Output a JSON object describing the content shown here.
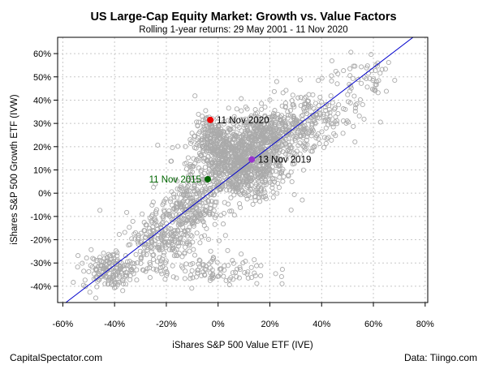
{
  "chart_data": {
    "type": "scatter",
    "title": "US Large-Cap Equity Market: Growth vs. Value Factors",
    "subtitle": "Rolling 1-year returns: 29 May 2001 - 11 Nov 2020",
    "xlabel": "iShares S&P 500 Value ETF (IVE)",
    "ylabel": "iShares S&P 500 Growth ETF (IVW)",
    "xlim": [
      -0.62,
      0.81
    ],
    "ylim": [
      -0.47,
      0.67
    ],
    "x_ticks": [
      -0.6,
      -0.4,
      -0.2,
      0.0,
      0.2,
      0.4,
      0.6,
      0.8
    ],
    "x_tick_labels": [
      "-60%",
      "-40%",
      "-20%",
      "0%",
      "20%",
      "40%",
      "60%",
      "80%"
    ],
    "y_ticks": [
      -0.4,
      -0.3,
      -0.2,
      -0.1,
      0.0,
      0.1,
      0.2,
      0.3,
      0.4,
      0.5,
      0.6
    ],
    "y_tick_labels": [
      "-40%",
      "-30%",
      "-20%",
      "-10%",
      "0%",
      "10%",
      "20%",
      "30%",
      "40%",
      "50%",
      "60%"
    ],
    "grid": true,
    "point_color": "#aaaaaa",
    "regression_line": {
      "color": "#0000cc",
      "intercept": 0.03,
      "slope": 0.85
    },
    "clusters": [
      {
        "cx": 0.08,
        "cy": 0.12,
        "sx": 0.09,
        "sy": 0.075,
        "n": 900
      },
      {
        "cx": 0.2,
        "cy": 0.25,
        "sx": 0.08,
        "sy": 0.05,
        "n": 380
      },
      {
        "cx": 0.36,
        "cy": 0.33,
        "sx": 0.09,
        "sy": 0.06,
        "n": 180
      },
      {
        "cx": -0.12,
        "cy": -0.07,
        "sx": 0.05,
        "sy": 0.06,
        "n": 240
      },
      {
        "cx": -0.22,
        "cy": -0.2,
        "sx": 0.07,
        "sy": 0.06,
        "n": 200
      },
      {
        "cx": -0.42,
        "cy": -0.33,
        "sx": 0.05,
        "sy": 0.04,
        "n": 170
      },
      {
        "cx": -0.03,
        "cy": 0.24,
        "sx": 0.03,
        "sy": 0.05,
        "n": 160
      },
      {
        "cx": 0.56,
        "cy": 0.5,
        "sx": 0.07,
        "sy": 0.05,
        "n": 50
      },
      {
        "cx": -0.04,
        "cy": -0.33,
        "sx": 0.12,
        "sy": 0.035,
        "n": 110
      }
    ],
    "highlights": [
      {
        "label": "11 Nov 2020",
        "x": -0.03,
        "y": 0.315,
        "color": "#ee0000",
        "label_side": "right"
      },
      {
        "label": "13 Nov 2019",
        "x": 0.13,
        "y": 0.145,
        "color": "#9933cc",
        "label_side": "right"
      },
      {
        "label": "11 Nov 2015",
        "x": -0.04,
        "y": 0.06,
        "color": "#006600",
        "label_side": "left"
      }
    ]
  },
  "footer": {
    "left": "CapitalSpectator.com",
    "right": "Data: Tiingo.com"
  }
}
